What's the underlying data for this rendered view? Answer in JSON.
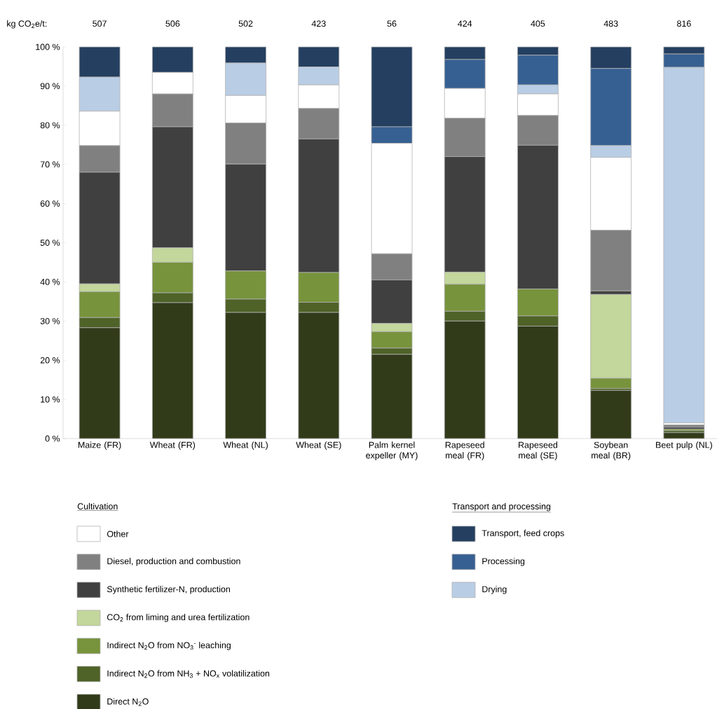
{
  "chart_data": {
    "type": "bar",
    "stacked": true,
    "categories": [
      "Maize (FR)",
      "Wheat (FR)",
      "Wheat (NL)",
      "Wheat (SE)",
      "Palm kernel expeller (MY)",
      "Rapeseed meal (FR)",
      "Rapeseed meal (SE)",
      "Soybean meal (BR)",
      "Beet pulp (NL)"
    ],
    "series": [
      {
        "name": "Direct N$_{2}$O",
        "color": "#313b1a",
        "values": [
          28.3,
          34.7,
          32.2,
          32.2,
          21.5,
          30.0,
          28.7,
          12.3,
          1.5
        ]
      },
      {
        "name": "Indirect N$_{2}$O from NH$_{3}$ + NO$_{x}$ volatilization",
        "color": "#4f6228",
        "values": [
          2.6,
          2.5,
          3.4,
          2.6,
          1.6,
          2.5,
          2.6,
          0.5,
          0.5
        ]
      },
      {
        "name": "Indirect N$_{2}$O from NO$_{3}$$^{-}$ leaching",
        "color": "#77933c",
        "values": [
          6.6,
          7.8,
          7.2,
          7.6,
          4.2,
          6.9,
          6.9,
          2.6,
          0.4
        ]
      },
      {
        "name": "CO$_{2}$ from liming and urea fertilization",
        "color": "#c3d69b",
        "values": [
          2.0,
          3.7,
          0,
          0,
          2.1,
          3.1,
          0,
          21.4,
          0
        ]
      },
      {
        "name": "Synthetic fertilizer-N, production",
        "color": "#404040",
        "values": [
          28.5,
          30.9,
          27.3,
          34.1,
          11.1,
          29.5,
          36.7,
          0.9,
          0.5
        ]
      },
      {
        "name": "Diesel, production and combustion",
        "color": "#808080",
        "values": [
          6.8,
          8.4,
          10.5,
          7.8,
          6.7,
          9.8,
          7.6,
          15.5,
          0.6
        ]
      },
      {
        "name": "Other",
        "color": "#ffffff",
        "values": [
          8.8,
          5.5,
          7.0,
          6.0,
          28.2,
          7.6,
          5.5,
          18.6,
          0.5
        ]
      },
      {
        "name": "Drying",
        "color": "#b9cde5",
        "values": [
          8.7,
          0,
          8.3,
          4.6,
          0,
          0,
          2.3,
          3.0,
          90.8
        ]
      },
      {
        "name": "Processing",
        "color": "#376092",
        "values": [
          0,
          0,
          0,
          0,
          4.2,
          7.4,
          7.6,
          19.7,
          3.4
        ]
      },
      {
        "name": "Transport, feed crops",
        "color": "#243f60",
        "values": [
          7.7,
          6.5,
          4.1,
          5.1,
          20.4,
          3.2,
          2.1,
          5.5,
          1.8
        ]
      }
    ],
    "ylim": [
      0,
      100
    ],
    "yticks": [
      {
        "value": 0,
        "label": "0 %"
      },
      {
        "value": 10,
        "label": "10 %"
      },
      {
        "value": 20,
        "label": "20 %"
      },
      {
        "value": 30,
        "label": "30 %"
      },
      {
        "value": 40,
        "label": "40 %"
      },
      {
        "value": 50,
        "label": "50 %"
      },
      {
        "value": 60,
        "label": "60 %"
      },
      {
        "value": 70,
        "label": "70 %"
      },
      {
        "value": 80,
        "label": "80 %"
      },
      {
        "value": 90,
        "label": "90 %"
      },
      {
        "value": 100,
        "label": "100 %"
      }
    ],
    "annotations": [
      "Cultivation",
      "Transport and processing",
      "kg CO$_{2}$e/t:",
      "507",
      "506",
      "502",
      "423",
      "56",
      "424",
      "405",
      "483",
      "816"
    ],
    "legend": "bottom"
  }
}
